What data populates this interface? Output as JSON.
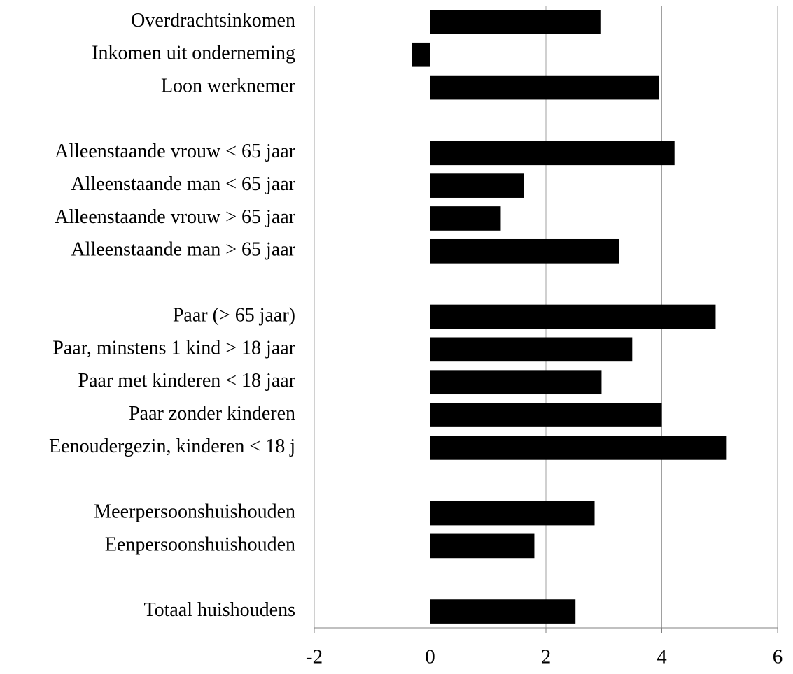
{
  "chart_data": {
    "type": "barh",
    "categories": [
      "Overdrachtsinkomen",
      "Inkomen uit onderneming",
      "Loon werknemer",
      null,
      "Alleenstaande vrouw < 65 jaar",
      "Alleenstaande man < 65 jaar",
      "Alleenstaande vrouw > 65 jaar",
      "Alleenstaande man > 65 jaar",
      null,
      "Paar (> 65 jaar)",
      "Paar, minstens 1 kind > 18 jaar",
      "Paar met kinderen < 18 jaar",
      "Paar zonder kinderen",
      "Eenoudergezin, kinderen < 18 j",
      null,
      "Meerpersoonshuishouden",
      "Eenpersoonshuishouden",
      null,
      "Totaal huishoudens"
    ],
    "values": [
      2.94,
      -0.31,
      3.95,
      null,
      4.22,
      1.62,
      1.22,
      3.26,
      null,
      4.93,
      3.49,
      2.96,
      4.0,
      5.11,
      null,
      2.84,
      1.8,
      null,
      2.51
    ],
    "color": "#000000",
    "xlim": [
      -2,
      6
    ],
    "xticks": [
      -2,
      0,
      2,
      4,
      6
    ],
    "grid": true
  }
}
